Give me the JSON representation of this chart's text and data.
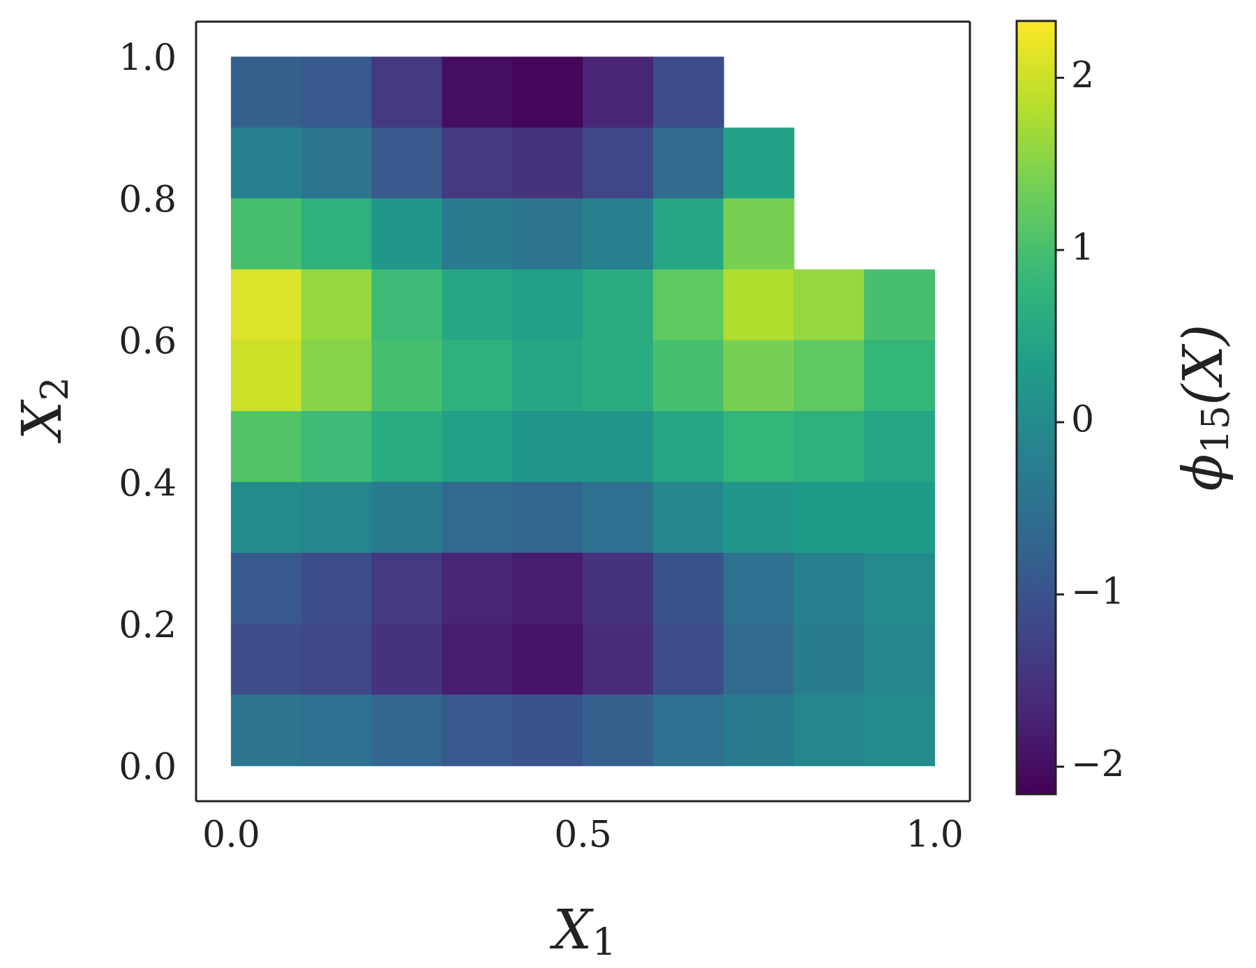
{
  "chart_data": {
    "type": "heatmap",
    "xlabel": "X$_{1}$",
    "ylabel": "X$_{2}$",
    "clabel": "ϕ$_{15}$(X)",
    "x": [
      0.05,
      0.15,
      0.25,
      0.35,
      0.45,
      0.55,
      0.65,
      0.75,
      0.85,
      0.95
    ],
    "y": [
      0.95,
      0.85,
      0.75,
      0.65,
      0.55,
      0.45,
      0.35,
      0.25,
      0.15,
      0.05
    ],
    "cells": [
      [
        -0.8,
        -0.9,
        -1.4,
        -2.0,
        -2.1,
        -1.7,
        -1.1,
        null,
        null,
        null
      ],
      [
        -0.2,
        -0.4,
        -0.9,
        -1.4,
        -1.5,
        -1.2,
        -0.6,
        0.4,
        null,
        null
      ],
      [
        1.0,
        0.7,
        0.2,
        -0.3,
        -0.4,
        -0.2,
        0.5,
        1.4,
        null,
        null
      ],
      [
        2.1,
        1.6,
        0.9,
        0.5,
        0.4,
        0.6,
        1.2,
        1.8,
        1.6,
        1.0
      ],
      [
        2.0,
        1.5,
        1.0,
        0.7,
        0.5,
        0.6,
        1.0,
        1.4,
        1.2,
        0.8
      ],
      [
        1.1,
        0.9,
        0.6,
        0.4,
        0.2,
        0.2,
        0.5,
        0.8,
        0.7,
        0.5
      ],
      [
        0.0,
        -0.1,
        -0.3,
        -0.6,
        -0.7,
        -0.5,
        -0.1,
        0.2,
        0.3,
        0.3
      ],
      [
        -0.9,
        -1.1,
        -1.4,
        -1.7,
        -1.8,
        -1.5,
        -1.0,
        -0.5,
        -0.2,
        0.0
      ],
      [
        -1.1,
        -1.2,
        -1.5,
        -1.8,
        -1.9,
        -1.6,
        -1.1,
        -0.6,
        -0.3,
        -0.1
      ],
      [
        -0.4,
        -0.5,
        -0.7,
        -0.9,
        -1.0,
        -0.8,
        -0.5,
        -0.3,
        -0.1,
        0.0
      ]
    ],
    "clim": [
      -2.16,
      2.33
    ],
    "cticks": [
      -2,
      -1,
      0,
      1,
      2
    ],
    "xlim": [
      -0.05,
      1.05
    ],
    "xticks": [
      {
        "value": 0,
        "label": "0.0"
      },
      {
        "value": 0.5,
        "label": "0.5"
      },
      {
        "value": 1,
        "label": "1.0"
      }
    ],
    "ylim": [
      -0.05,
      1.05
    ],
    "yticks": [
      {
        "value": 0,
        "label": "0.0"
      },
      {
        "value": 0.2,
        "label": "0.2"
      },
      {
        "value": 0.4,
        "label": "0.4"
      },
      {
        "value": 0.6,
        "label": "0.6"
      },
      {
        "value": 0.8,
        "label": "0.8"
      },
      {
        "value": 1,
        "label": "1.0"
      }
    ]
  }
}
